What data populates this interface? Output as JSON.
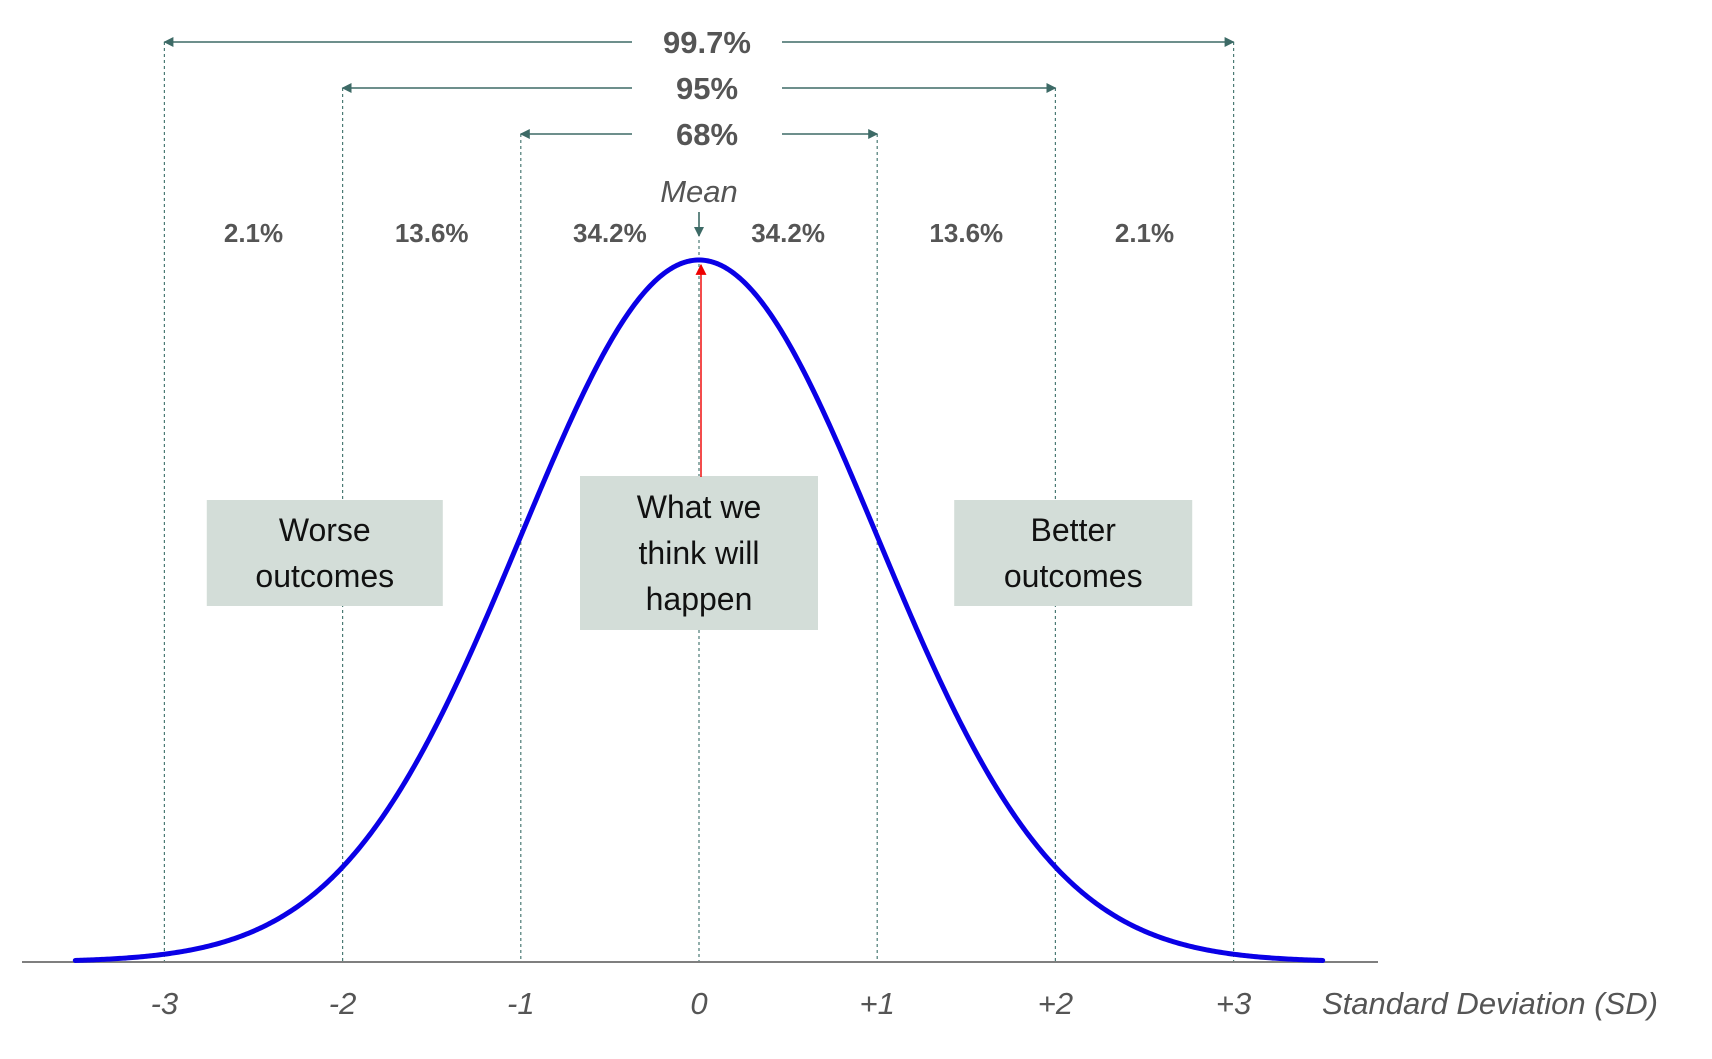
{
  "colors": {
    "curve": "#0a00e6",
    "axis": "#7f7f7f",
    "guide": "#4a7a74",
    "arrow": "#3d6a66",
    "label": "#555555",
    "box_fill": "#d3ddd8",
    "mean_arrow": "#ee0000"
  },
  "chart_data": {
    "type": "line",
    "title": "",
    "xlabel": "Standard Deviation (SD)",
    "ylabel": "",
    "xlim": [
      -3.5,
      3.5
    ],
    "ticks": [
      {
        "value": -3,
        "label": "-3"
      },
      {
        "value": -2,
        "label": "-2"
      },
      {
        "value": -1,
        "label": "-1"
      },
      {
        "value": 0,
        "label": "0"
      },
      {
        "value": 1,
        "label": "+1"
      },
      {
        "value": 2,
        "label": "+2"
      },
      {
        "value": 3,
        "label": "+3"
      }
    ],
    "series": [
      {
        "function": "normal_pdf",
        "mean": 0,
        "sd": 1
      }
    ],
    "ranges": [
      {
        "label": "99.7%",
        "from": -3,
        "to": 3
      },
      {
        "label": "95%",
        "from": -2,
        "to": 2
      },
      {
        "label": "68%",
        "from": -1,
        "to": 1
      }
    ],
    "segments": [
      {
        "label": "2.1%",
        "from": -3,
        "to": -2
      },
      {
        "label": "13.6%",
        "from": -2,
        "to": -1
      },
      {
        "label": "34.2%",
        "from": -1,
        "to": 0
      },
      {
        "label": "34.2%",
        "from": 0,
        "to": 1
      },
      {
        "label": "13.6%",
        "from": 1,
        "to": 2
      },
      {
        "label": "2.1%",
        "from": 2,
        "to": 3
      }
    ],
    "mean_label": "Mean",
    "annotations": [
      {
        "lines": [
          "Worse",
          "outcomes"
        ],
        "at": -2.1
      },
      {
        "lines": [
          "What we",
          "think will",
          "happen"
        ],
        "at": 0
      },
      {
        "lines": [
          "Better",
          "outcomes"
        ],
        "at": 2.1
      }
    ]
  }
}
